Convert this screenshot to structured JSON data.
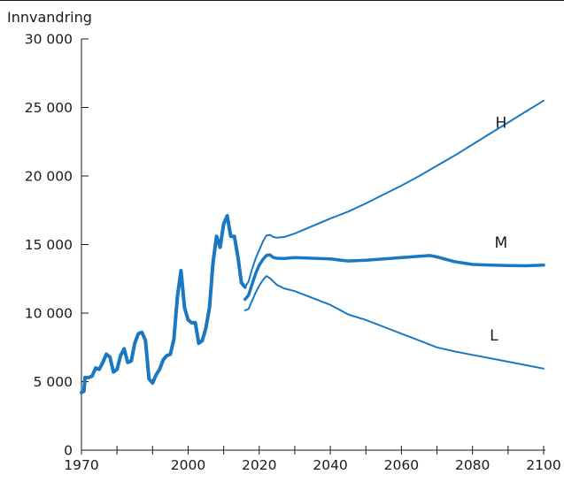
{
  "colors": {
    "series": "#1a78c2",
    "axis": "#1a1a1a"
  },
  "chart_data": {
    "type": "line",
    "title": "",
    "ylabel": "Innvandring",
    "xlabel": "",
    "xlim": [
      1970,
      2100
    ],
    "ylim": [
      0,
      30000
    ],
    "grid": false,
    "legend": "none",
    "x_ticks": [
      1970,
      1980,
      1990,
      2000,
      2010,
      2020,
      2030,
      2040,
      2050,
      2060,
      2070,
      2080,
      2090,
      2100
    ],
    "x_tick_labels": [
      {
        "x": 1970,
        "label": "1970"
      },
      {
        "x": 2000,
        "label": "2000"
      },
      {
        "x": 2020,
        "label": "2020"
      },
      {
        "x": 2040,
        "label": "2040"
      },
      {
        "x": 2060,
        "label": "2060"
      },
      {
        "x": 2080,
        "label": "2080"
      },
      {
        "x": 2100,
        "label": "2100"
      }
    ],
    "y_ticks": [
      {
        "y": 0,
        "label": "0"
      },
      {
        "y": 5000,
        "label": "5 000"
      },
      {
        "y": 10000,
        "label": "10 000"
      },
      {
        "y": 15000,
        "label": "15 000"
      },
      {
        "y": 20000,
        "label": "20 000"
      },
      {
        "y": 25000,
        "label": "25 000"
      },
      {
        "y": 30000,
        "label": "30 000"
      }
    ],
    "historical": {
      "x": [
        1970,
        1970.7,
        1971,
        1972,
        1973,
        1974,
        1975,
        1976,
        1977,
        1978,
        1979,
        1980,
        1981,
        1982,
        1983,
        1984,
        1985,
        1986,
        1987,
        1988,
        1989,
        1990,
        1991,
        1992,
        1993,
        1994,
        1995,
        1996,
        1997,
        1998,
        1999,
        2000,
        2001,
        2002,
        2003,
        2004,
        2005,
        2006,
        2007,
        2008,
        2009,
        2010,
        2011,
        2012,
        2013,
        2014,
        2015,
        2016
      ],
      "y": [
        4200,
        4300,
        5300,
        5300,
        5400,
        6000,
        5900,
        6400,
        7000,
        6800,
        5700,
        5900,
        6900,
        7400,
        6400,
        6500,
        7800,
        8500,
        8600,
        8000,
        5200,
        4900,
        5500,
        5900,
        6600,
        6900,
        7000,
        8100,
        11200,
        13100,
        10400,
        9500,
        9300,
        9300,
        7800,
        8000,
        8900,
        10400,
        13700,
        15600,
        14800,
        16500,
        17100,
        15600,
        15600,
        14100,
        12200,
        11900
      ]
    },
    "series": [
      {
        "name": "H",
        "x": [
          2016,
          2017,
          2018,
          2019,
          2020,
          2021,
          2022,
          2023,
          2024,
          2025,
          2027,
          2030,
          2035,
          2040,
          2045,
          2050,
          2055,
          2060,
          2065,
          2070,
          2075,
          2080,
          2085,
          2090,
          2095,
          2100
        ],
        "y": [
          11900,
          12300,
          13200,
          14000,
          14600,
          15200,
          15650,
          15700,
          15550,
          15500,
          15550,
          15800,
          16350,
          16900,
          17400,
          18000,
          18650,
          19300,
          20000,
          20750,
          21500,
          22300,
          23100,
          23900,
          24700,
          25500
        ]
      },
      {
        "name": "M",
        "x": [
          2016,
          2017,
          2018,
          2019,
          2020,
          2021,
          2022,
          2023,
          2024,
          2025,
          2027,
          2030,
          2035,
          2040,
          2045,
          2050,
          2055,
          2060,
          2065,
          2068,
          2070,
          2075,
          2080,
          2085,
          2090,
          2095,
          2100
        ],
        "y": [
          11000,
          11300,
          12100,
          12900,
          13500,
          13900,
          14200,
          14250,
          14050,
          14000,
          13980,
          14050,
          14000,
          13950,
          13800,
          13850,
          13950,
          14050,
          14150,
          14200,
          14100,
          13750,
          13550,
          13500,
          13470,
          13450,
          13500
        ]
      },
      {
        "name": "L",
        "x": [
          2016,
          2017,
          2018,
          2019,
          2020,
          2021,
          2022,
          2023,
          2024,
          2025,
          2027,
          2030,
          2035,
          2040,
          2045,
          2050,
          2055,
          2060,
          2065,
          2070,
          2075,
          2080,
          2085,
          2090,
          2095,
          2100
        ],
        "y": [
          10200,
          10300,
          10900,
          11500,
          12000,
          12400,
          12700,
          12550,
          12300,
          12050,
          11800,
          11600,
          11100,
          10600,
          9900,
          9500,
          9000,
          8500,
          8000,
          7500,
          7200,
          6950,
          6700,
          6450,
          6200,
          5950
        ]
      }
    ]
  }
}
